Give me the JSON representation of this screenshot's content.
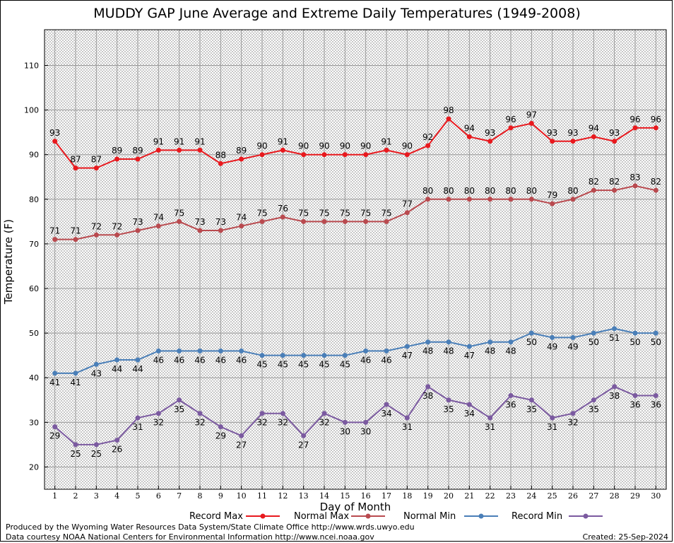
{
  "chart_data": {
    "type": "line",
    "title": "MUDDY GAP June Average and Extreme Daily Temperatures (1949-2008)",
    "xlabel": "Day of Month",
    "ylabel": "Temperature (F)",
    "x": [
      1,
      2,
      3,
      4,
      5,
      6,
      7,
      8,
      9,
      10,
      11,
      12,
      13,
      14,
      15,
      16,
      17,
      18,
      19,
      20,
      21,
      22,
      23,
      24,
      25,
      26,
      27,
      28,
      29,
      30
    ],
    "xlim": [
      0.5,
      30.5
    ],
    "ylim": [
      15,
      118
    ],
    "yticks": [
      20,
      30,
      40,
      50,
      60,
      70,
      80,
      90,
      100,
      110
    ],
    "grid": true,
    "legend_position": "bottom",
    "series": [
      {
        "name": "Record Max",
        "color": "#e8191e",
        "label_pos": "above",
        "values": [
          93,
          87,
          87,
          89,
          89,
          91,
          91,
          91,
          88,
          89,
          90,
          91,
          90,
          90,
          90,
          90,
          91,
          90,
          92,
          98,
          94,
          93,
          96,
          97,
          93,
          93,
          94,
          93,
          96,
          96
        ]
      },
      {
        "name": "Normal Max",
        "color": "#b94a4f",
        "label_pos": "above",
        "values": [
          71,
          71,
          72,
          72,
          73,
          74,
          75,
          73,
          73,
          74,
          75,
          76,
          75,
          75,
          75,
          75,
          75,
          77,
          80,
          80,
          80,
          80,
          80,
          80,
          79,
          80,
          82,
          82,
          83,
          82
        ]
      },
      {
        "name": "Normal Min",
        "color": "#4a7fb8",
        "label_pos": "below",
        "values": [
          41,
          41,
          43,
          44,
          44,
          46,
          46,
          46,
          46,
          46,
          45,
          45,
          45,
          45,
          45,
          46,
          46,
          47,
          48,
          48,
          47,
          48,
          48,
          50,
          49,
          49,
          50,
          51,
          50,
          50
        ]
      },
      {
        "name": "Record Min",
        "color": "#7b5aa0",
        "label_pos": "below",
        "values": [
          29,
          25,
          25,
          26,
          31,
          32,
          35,
          32,
          29,
          27,
          32,
          32,
          27,
          32,
          30,
          30,
          34,
          31,
          38,
          35,
          34,
          31,
          36,
          35,
          31,
          32,
          35,
          38,
          36,
          36
        ]
      }
    ]
  },
  "footer": {
    "credit_1": "Produced by the Wyoming Water Resources Data System/State Climate Office http://www.wrds.uwyo.edu",
    "credit_2": "Data courtesy NOAA National Centers for Environmental Information http://www.ncei.noaa.gov",
    "created": "Created:  25-Sep-2024"
  }
}
